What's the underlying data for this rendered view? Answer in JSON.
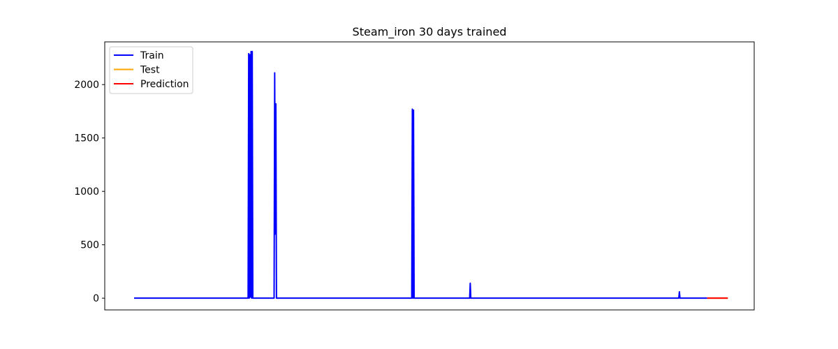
{
  "chart_data": {
    "type": "line",
    "title": "Steam_iron 30 days trained",
    "xlabel": "",
    "ylabel": "",
    "xlim": [
      0,
      1000
    ],
    "ylim": [
      -110,
      2400
    ],
    "yticks": [
      0,
      500,
      1000,
      1500,
      2000
    ],
    "xticks_visible": false,
    "grid": false,
    "legend_position": "top-left",
    "series": [
      {
        "name": "Train",
        "color": "#0000ff",
        "x": [
          0,
          193,
          194,
          195,
          196,
          197,
          198,
          199,
          200,
          201,
          202,
          237,
          238,
          239,
          240,
          241,
          242,
          243,
          470,
          471,
          472,
          473,
          474,
          568,
          569,
          570,
          571,
          922,
          923,
          924,
          970
        ],
        "y": [
          0,
          0,
          2290,
          0,
          2280,
          10,
          2310,
          0,
          2310,
          0,
          0,
          0,
          2110,
          600,
          1820,
          0,
          0,
          0,
          0,
          1770,
          0,
          1760,
          0,
          0,
          140,
          0,
          0,
          0,
          60,
          0,
          0
        ]
      },
      {
        "name": "Test",
        "color": "#ffa500",
        "x": [
          970,
          1005
        ],
        "y": [
          0,
          0
        ]
      },
      {
        "name": "Prediction",
        "color": "#ff0000",
        "x": [
          970,
          1005
        ],
        "y": [
          0,
          0
        ]
      }
    ]
  }
}
